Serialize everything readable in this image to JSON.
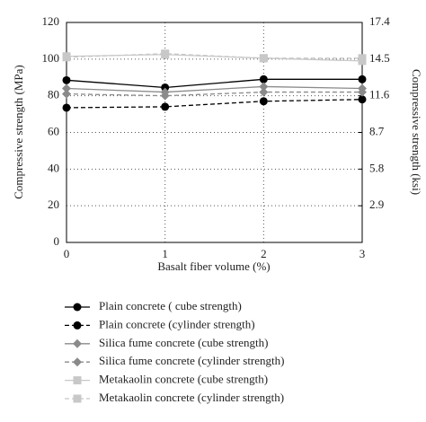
{
  "chart_data": {
    "type": "line",
    "x_label": "Basalt fiber volume (%)",
    "y_label": "Compressive strength (MPa)",
    "y2_label": "Compressive strength (ksi)",
    "x": [
      0,
      1,
      2,
      3
    ],
    "xlim": [
      0,
      3
    ],
    "xticks": [
      0,
      1,
      2,
      3
    ],
    "ylim": [
      0,
      120
    ],
    "yticks": [
      0,
      20,
      40,
      60,
      80,
      100,
      120
    ],
    "y2lim": [
      0,
      17.4
    ],
    "y2ticks": [
      2.9,
      5.8,
      8.7,
      11.6,
      14.5,
      17.4
    ],
    "grid": true,
    "series": [
      {
        "name": "Plain concrete ( cube strength)",
        "color": "#000000",
        "marker": "circle",
        "dashed": false,
        "values": [
          88.5,
          84.5,
          89,
          89
        ]
      },
      {
        "name": "Plain concrete (cylinder strength)",
        "color": "#000000",
        "marker": "circle",
        "dashed": true,
        "values": [
          73.5,
          74,
          77,
          78
        ]
      },
      {
        "name": "Silica fume concrete (cube strength)",
        "color": "#8a8a8a",
        "marker": "diamond",
        "dashed": false,
        "values": [
          84,
          82,
          85,
          84
        ]
      },
      {
        "name": "Silica fume concrete (cylinder strength)",
        "color": "#8a8a8a",
        "marker": "diamond",
        "dashed": true,
        "values": [
          81,
          80,
          82,
          82
        ]
      },
      {
        "name": "Metakaolin concrete (cube strength)",
        "color": "#c8c8c8",
        "marker": "square",
        "dashed": false,
        "values": [
          101.5,
          102.5,
          100.5,
          99
        ]
      },
      {
        "name": "Metakaolin concrete (cylinder strength)",
        "color": "#c8c8c8",
        "marker": "square",
        "dashed": true,
        "values": [
          101,
          103,
          100.5,
          100.5
        ]
      }
    ]
  }
}
